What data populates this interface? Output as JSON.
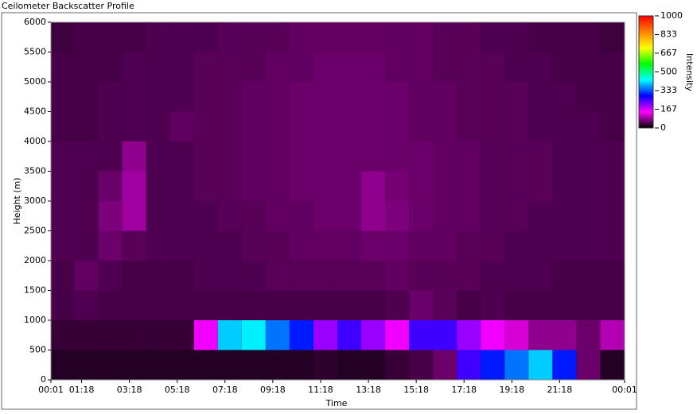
{
  "chart_data": {
    "type": "heatmap",
    "title": "Ceilometer Backscatter Profile",
    "xlabel": "Time",
    "ylabel": "Height (m)",
    "colorbar_label": "Intensity",
    "x": [
      0.5,
      1.5,
      2.5,
      3.5,
      4.5,
      5.5,
      6.5,
      7.5,
      8.5,
      9.5,
      10.5,
      11.5,
      12.5,
      13.5,
      14.5,
      15.5,
      16.5,
      17.5,
      18.5,
      19.5,
      20.5,
      21.5,
      22.5,
      23.5
    ],
    "y": [
      250,
      750,
      1250,
      1750,
      2250,
      2750,
      3250,
      3750,
      4250,
      4750,
      5250,
      5750
    ],
    "z": [
      [
        20,
        20,
        20,
        20,
        20,
        20,
        20,
        20,
        20,
        20,
        20,
        25,
        20,
        20,
        30,
        40,
        60,
        250,
        300,
        350,
        400,
        300,
        60,
        20
      ],
      [
        30,
        30,
        30,
        30,
        30,
        30,
        150,
        400,
        420,
        350,
        300,
        200,
        250,
        200,
        150,
        250,
        250,
        200,
        150,
        120,
        80,
        80,
        60,
        100
      ],
      [
        40,
        45,
        40,
        40,
        40,
        40,
        40,
        40,
        40,
        40,
        40,
        40,
        40,
        40,
        45,
        60,
        50,
        40,
        45,
        40,
        40,
        40,
        40,
        40
      ],
      [
        40,
        55,
        45,
        40,
        40,
        40,
        45,
        45,
        45,
        50,
        50,
        50,
        50,
        50,
        55,
        50,
        50,
        50,
        45,
        45,
        45,
        40,
        40,
        40
      ],
      [
        45,
        45,
        60,
        50,
        45,
        45,
        45,
        45,
        50,
        50,
        55,
        55,
        55,
        60,
        60,
        55,
        55,
        50,
        50,
        45,
        45,
        45,
        45,
        45
      ],
      [
        45,
        45,
        70,
        90,
        45,
        45,
        45,
        50,
        50,
        55,
        55,
        60,
        60,
        80,
        70,
        60,
        55,
        55,
        50,
        50,
        45,
        45,
        45,
        45
      ],
      [
        45,
        45,
        60,
        90,
        45,
        45,
        50,
        50,
        55,
        55,
        60,
        60,
        60,
        80,
        65,
        60,
        55,
        55,
        50,
        50,
        50,
        45,
        45,
        45
      ],
      [
        45,
        45,
        45,
        80,
        45,
        45,
        50,
        50,
        55,
        55,
        60,
        60,
        60,
        60,
        60,
        60,
        55,
        55,
        50,
        50,
        50,
        45,
        45,
        45
      ],
      [
        40,
        40,
        45,
        45,
        45,
        55,
        50,
        50,
        55,
        55,
        60,
        60,
        60,
        60,
        60,
        55,
        55,
        50,
        50,
        50,
        45,
        45,
        45,
        40
      ],
      [
        40,
        40,
        45,
        45,
        45,
        45,
        50,
        50,
        55,
        55,
        60,
        60,
        60,
        60,
        60,
        55,
        55,
        50,
        50,
        50,
        45,
        45,
        40,
        40
      ],
      [
        40,
        40,
        40,
        45,
        45,
        45,
        50,
        50,
        50,
        55,
        55,
        60,
        60,
        60,
        55,
        55,
        50,
        50,
        50,
        45,
        45,
        40,
        40,
        40
      ],
      [
        35,
        40,
        40,
        40,
        45,
        45,
        45,
        50,
        50,
        50,
        55,
        55,
        55,
        55,
        55,
        55,
        50,
        50,
        45,
        45,
        40,
        40,
        40,
        35
      ]
    ],
    "xlim": [
      0.0167,
      24.0167
    ],
    "xticks": [
      {
        "value": 0.0167,
        "label": "00:01"
      },
      {
        "value": 1.3,
        "label": "01:18"
      },
      {
        "value": 3.3,
        "label": "03:18"
      },
      {
        "value": 5.3,
        "label": "05:18"
      },
      {
        "value": 7.3,
        "label": "07:18"
      },
      {
        "value": 9.3,
        "label": "09:18"
      },
      {
        "value": 11.3,
        "label": "11:18"
      },
      {
        "value": 13.3,
        "label": "13:18"
      },
      {
        "value": 15.3,
        "label": "15:18"
      },
      {
        "value": 17.3,
        "label": "17:18"
      },
      {
        "value": 19.3,
        "label": "19:18"
      },
      {
        "value": 21.3,
        "label": "21:18"
      },
      {
        "value": 24.0167,
        "label": "00:01"
      }
    ],
    "ylim": [
      0,
      6000
    ],
    "yticks": [
      0,
      500,
      1000,
      1500,
      2000,
      2500,
      3000,
      3500,
      4000,
      4500,
      5000,
      5500,
      6000
    ],
    "zlim": [
      0,
      1000
    ],
    "zticks": [
      0,
      167,
      333,
      500,
      667,
      833,
      1000
    ],
    "colormap": [
      "#000000",
      "#ff00ff",
      "#0000ff",
      "#00ffff",
      "#00ff00",
      "#ffff00",
      "#ff8000",
      "#ff0000"
    ]
  }
}
